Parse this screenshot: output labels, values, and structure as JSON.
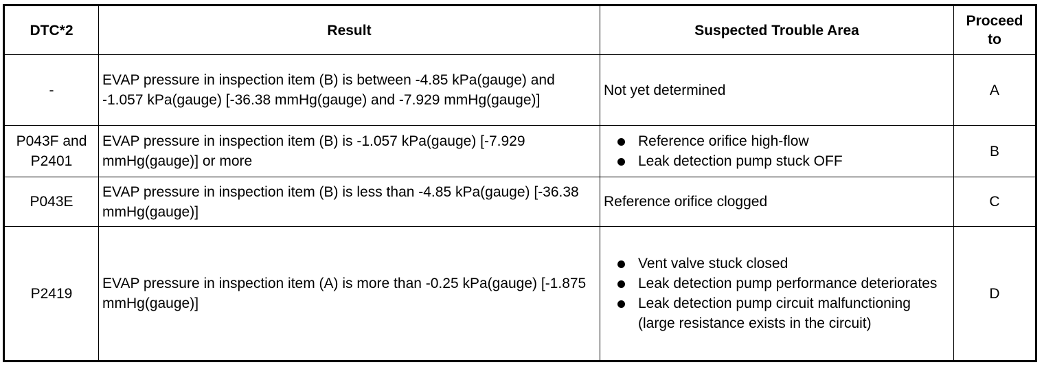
{
  "table": {
    "headers": [
      "DTC*2",
      "Result",
      "Suspected Trouble Area",
      "Proceed to"
    ],
    "rows": [
      {
        "dtc": "-",
        "result": "EVAP pressure in inspection item (B) is between -4.85 kPa(gauge) and -1.057 kPa(gauge) [-36.38 mmHg(gauge) and -7.929 mmHg(gauge)]",
        "areas": [
          "Not yet determined"
        ],
        "proceed": "A"
      },
      {
        "dtc": "P043F and P2401",
        "result": "EVAP pressure in inspection item (B) is -1.057 kPa(gauge) [-7.929 mmHg(gauge)] or more",
        "areas": [
          "Reference orifice high-flow",
          "Leak detection pump stuck OFF"
        ],
        "proceed": "B"
      },
      {
        "dtc": "P043E",
        "result": "EVAP pressure in inspection item (B) is less than -4.85 kPa(gauge) [-36.38 mmHg(gauge)]",
        "areas": [
          "Reference orifice clogged"
        ],
        "proceed": "C"
      },
      {
        "dtc": "P2419",
        "result": "EVAP pressure in inspection item (A) is more than -0.25 kPa(gauge) [-1.875 mmHg(gauge)]",
        "areas": [
          "Vent valve stuck closed",
          "Leak detection pump performance deteriorates",
          "Leak detection pump circuit malfunctioning (large resistance exists in the circuit)"
        ],
        "proceed": "D"
      }
    ]
  }
}
